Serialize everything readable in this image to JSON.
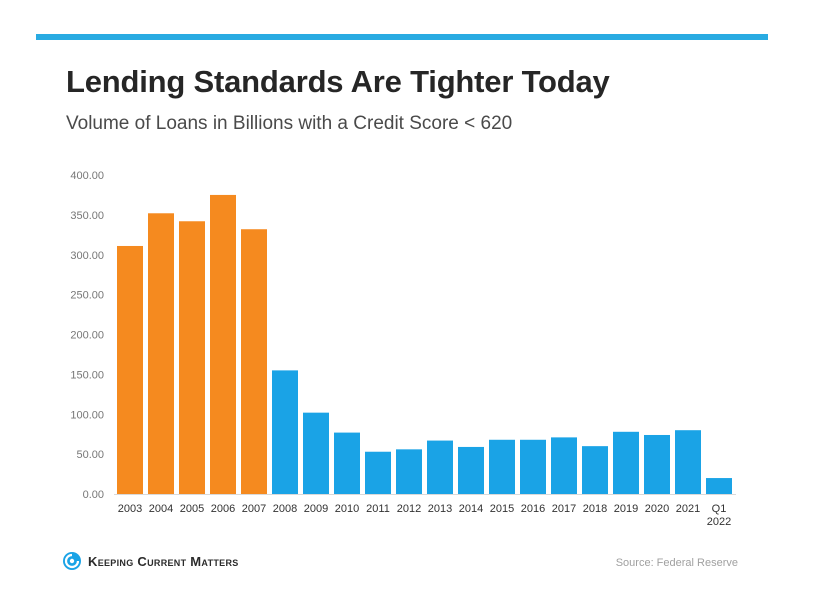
{
  "header": {
    "title": "Lending Standards Are Tighter Today",
    "subtitle": "Volume of Loans in Billions with a Credit Score < 620",
    "bar_color": "#29abe2"
  },
  "footer": {
    "logo_text": "Keeping Current Matters",
    "logo_icon": "kcm-swirl-icon",
    "source": "Source: Federal Reserve"
  },
  "colors": {
    "highlight": "#f58a1f",
    "normal": "#1aa3e6"
  },
  "chart_data": {
    "type": "bar",
    "title": "Lending Standards Are Tighter Today",
    "subtitle": "Volume of Loans in Billions with a Credit Score < 620",
    "xlabel": "",
    "ylabel": "",
    "ylim": [
      0,
      400
    ],
    "yticks": [
      "0.00",
      "50.00",
      "100.00",
      "150.00",
      "200.00",
      "250.00",
      "300.00",
      "350.00",
      "400.00"
    ],
    "grid": false,
    "categories": [
      [
        "2003"
      ],
      [
        "2004"
      ],
      [
        "2005"
      ],
      [
        "2006"
      ],
      [
        "2007"
      ],
      [
        "2008"
      ],
      [
        "2009"
      ],
      [
        "2010"
      ],
      [
        "2011"
      ],
      [
        "2012"
      ],
      [
        "2013"
      ],
      [
        "2014"
      ],
      [
        "2015"
      ],
      [
        "2016"
      ],
      [
        "2017"
      ],
      [
        "2018"
      ],
      [
        "2019"
      ],
      [
        "2020"
      ],
      [
        "2021"
      ],
      [
        "Q1",
        "2022"
      ]
    ],
    "values": [
      311,
      352,
      342,
      375,
      332,
      155,
      102,
      77,
      53,
      56,
      67,
      59,
      68,
      68,
      71,
      60,
      78,
      74,
      80,
      20
    ],
    "highlighted": [
      "2003",
      "2004",
      "2005",
      "2006",
      "2007"
    ]
  }
}
